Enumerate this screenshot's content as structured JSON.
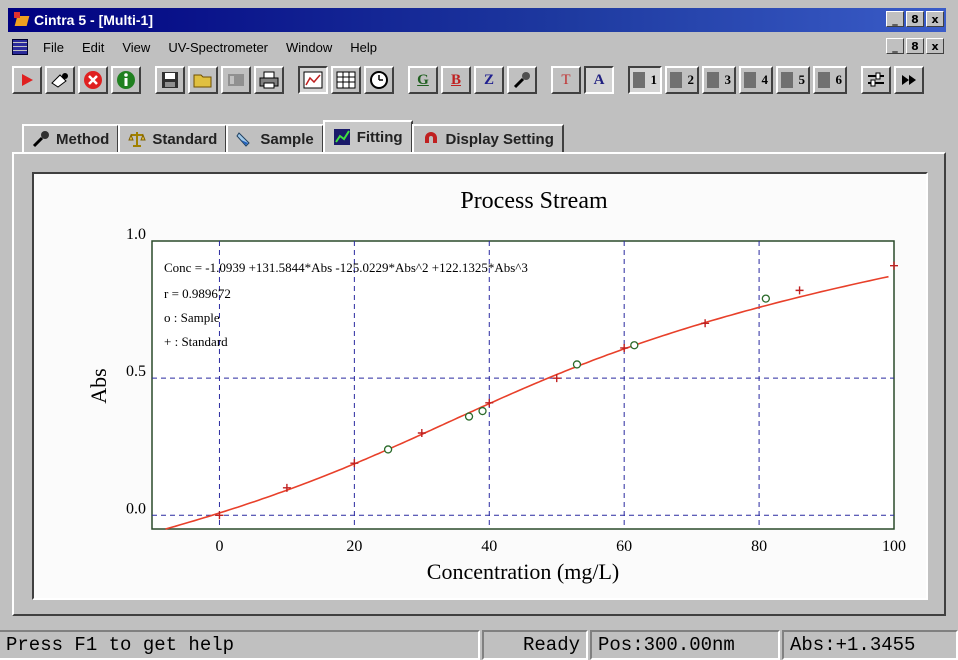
{
  "window": {
    "title": "Cintra 5 - [Multi-1]",
    "controls": [
      "_",
      "8",
      "x"
    ]
  },
  "menu": {
    "items": [
      "File",
      "Edit",
      "View",
      "UV-Spectrometer",
      "Window",
      "Help"
    ],
    "mdi_controls": [
      "_",
      "8",
      "x"
    ]
  },
  "toolbar": {
    "letter_buttons": [
      "G",
      "B",
      "Z",
      "T",
      "A"
    ],
    "number_buttons": [
      "1",
      "2",
      "3",
      "4",
      "5",
      "6"
    ]
  },
  "tabs": [
    {
      "label": "Method",
      "icon": "wrench-icon"
    },
    {
      "label": "Standard",
      "icon": "balance-icon"
    },
    {
      "label": "Sample",
      "icon": "test-tube-icon"
    },
    {
      "label": "Fitting",
      "icon": "graph-icon",
      "active": true
    },
    {
      "label": "Display Setting",
      "icon": "magnet-icon"
    }
  ],
  "chart_data": {
    "type": "scatter",
    "title": "Process Stream",
    "xlabel": "Concentration (mg/L)",
    "ylabel": "Abs",
    "xlim": [
      -10,
      100
    ],
    "ylim": [
      -0.05,
      1.0
    ],
    "x_ticks": [
      "0",
      "20",
      "40",
      "60",
      "80",
      "100"
    ],
    "y_ticks": [
      "0.0",
      "0.5",
      "1.0"
    ],
    "grid": "dashed",
    "annotations": [
      "Conc = -1.0939 +131.5844*Abs -125.0229*Abs^2 +122.1325*Abs^3",
      "r = 0.989672",
      "o : Sample",
      "+ : Standard"
    ],
    "equation": {
      "a0": -1.0939,
      "a1": 131.5844,
      "a2": -125.0229,
      "a3": 122.1325
    },
    "series": [
      {
        "name": "Sample",
        "marker": "o",
        "x": [
          25,
          37,
          39,
          53,
          61.5,
          81
        ],
        "y": [
          0.24,
          0.36,
          0.38,
          0.55,
          0.62,
          0.79
        ]
      },
      {
        "name": "Standard",
        "marker": "+",
        "x": [
          0,
          10,
          20,
          30,
          40,
          50,
          60,
          72,
          86,
          100
        ],
        "y": [
          0.0,
          0.1,
          0.19,
          0.3,
          0.41,
          0.5,
          0.61,
          0.7,
          0.82,
          0.91
        ]
      }
    ],
    "colors": {
      "fit_line": "#e8402a",
      "grid": "#2a2aa0",
      "markers": "#2a7a2a"
    }
  },
  "statusbar": {
    "help": "Press F1 to get help",
    "state": "Ready",
    "position": "Pos:300.00nm",
    "abs": "Abs:+1.3455"
  }
}
